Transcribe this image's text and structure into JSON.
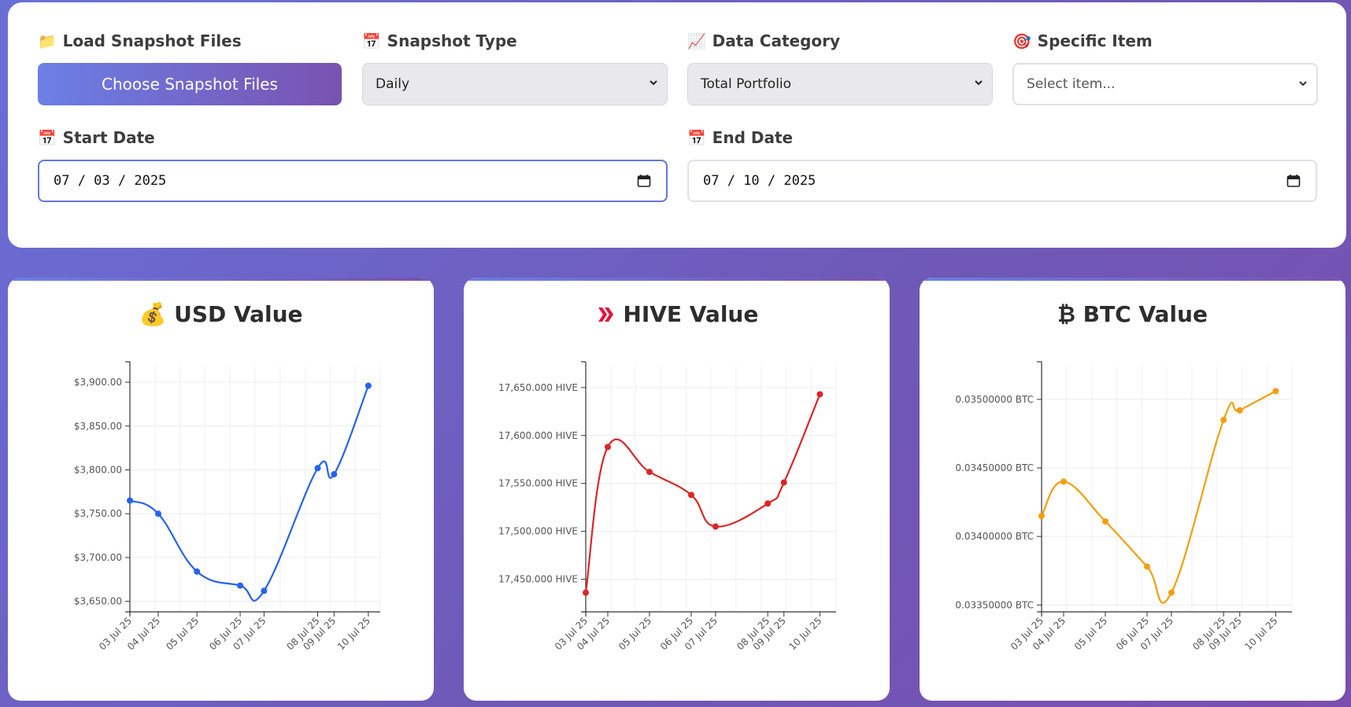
{
  "controls": {
    "load": {
      "icon": "folder-icon",
      "glyph": "📁",
      "label": "Load Snapshot Files",
      "button": "Choose Snapshot Files"
    },
    "snapshot_type": {
      "icon": "calendar-icon",
      "glyph": "📅",
      "label": "Snapshot Type",
      "value": "Daily"
    },
    "data_category": {
      "icon": "chart-increasing-icon",
      "glyph": "📈",
      "label": "Data Category",
      "value": "Total Portfolio"
    },
    "specific_item": {
      "icon": "target-icon",
      "glyph": "🎯",
      "label": "Specific Item",
      "placeholder": "Select item..."
    },
    "start_date": {
      "icon": "calendar-icon",
      "glyph": "📅",
      "label": "Start Date",
      "value": "07 / 03 / 2025"
    },
    "end_date": {
      "icon": "calendar-icon",
      "glyph": "📅",
      "label": "End Date",
      "value": "07 / 10 / 2025"
    }
  },
  "cards": [
    {
      "icon": "money-bag-icon",
      "glyph": "💰",
      "title": "USD Value",
      "color": "#2563eb"
    },
    {
      "icon": "hive-logo-icon",
      "title": "HIVE Value",
      "color": "#dc2626"
    },
    {
      "icon": "bitcoin-icon",
      "glyph": "₿",
      "title": "BTC Value",
      "color": "#f59e0b"
    }
  ],
  "chart_data": [
    {
      "type": "line",
      "title": "USD Value",
      "x": [
        "03 Jul 25",
        "04 Jul 25",
        "05 Jul 25",
        "06 Jul 25",
        "07 Jul 25",
        "08 Jul 25",
        "09 Jul 25",
        "10 Jul 25"
      ],
      "x_days": [
        0,
        0.95,
        2.25,
        3.7,
        4.5,
        6.3,
        6.85,
        8
      ],
      "tick_days": [
        0,
        1,
        2.8,
        4.2,
        5,
        6.7,
        7.3,
        8.4
      ],
      "y": [
        3765,
        3750,
        3684,
        3668,
        3662,
        3802,
        3795,
        3896
      ],
      "yticks": [
        3650,
        3700,
        3750,
        3800,
        3850,
        3900
      ],
      "ytick_labels": [
        "$3,650.00",
        "$3,700.00",
        "$3,750.00",
        "$3,800.00",
        "$3,850.00",
        "$3,900.00"
      ],
      "ylim": [
        3638,
        3918
      ],
      "grid": true
    },
    {
      "type": "line",
      "title": "HIVE Value",
      "x": [
        "03 Jul 25",
        "04 Jul 25",
        "05 Jul 25",
        "06 Jul 25",
        "07 Jul 25",
        "08 Jul 25",
        "09 Jul 25",
        "10 Jul 25"
      ],
      "x_days": [
        0,
        0.95,
        2.75,
        4.55,
        5.6,
        7.85,
        8.55,
        10.1
      ],
      "tick_days": [
        0,
        1,
        2.8,
        4.2,
        5,
        6.7,
        7.3,
        8.4
      ],
      "y": [
        17436,
        17588,
        17562,
        17538,
        17505,
        17529,
        17551,
        17643
      ],
      "yticks": [
        17450,
        17500,
        17550,
        17600,
        17650
      ],
      "ytick_labels": [
        "17,450.000 HIVE",
        "17,500.000 HIVE",
        "17,550.000 HIVE",
        "17,600.000 HIVE",
        "17,650.000 HIVE"
      ],
      "ylim": [
        17416,
        17672
      ],
      "grid": true
    },
    {
      "type": "line",
      "title": "BTC Value",
      "x": [
        "03 Jul 25",
        "04 Jul 25",
        "05 Jul 25",
        "06 Jul 25",
        "07 Jul 25",
        "08 Jul 25",
        "09 Jul 25",
        "10 Jul 25"
      ],
      "x_days": [
        0,
        0.95,
        2.75,
        4.55,
        5.6,
        7.85,
        8.55,
        10.1
      ],
      "tick_days": [
        0,
        1,
        2.8,
        4.2,
        5,
        6.7,
        7.3,
        8.4
      ],
      "y": [
        0.03415,
        0.0344,
        0.03411,
        0.03378,
        0.03359,
        0.03485,
        0.03492,
        0.03506
      ],
      "yticks": [
        0.0335,
        0.034,
        0.0345,
        0.035
      ],
      "ytick_labels": [
        "0.03350000 BTC",
        "0.03400000 BTC",
        "0.03450000 BTC",
        "0.03500000 BTC"
      ],
      "ylim": [
        0.03345,
        0.03524
      ],
      "grid": true
    }
  ]
}
